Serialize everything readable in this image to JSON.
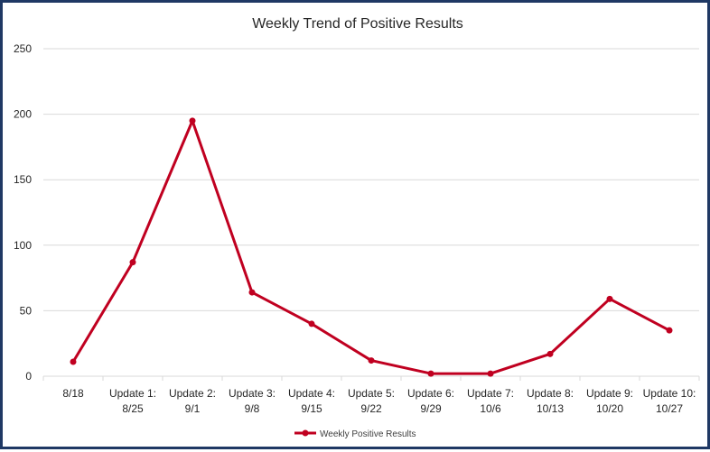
{
  "chart_data": {
    "type": "line",
    "title": "Weekly Trend of Positive Results",
    "xlabel": "",
    "ylabel": "",
    "categories": [
      [
        "8/18"
      ],
      [
        "Update 1:",
        "8/25"
      ],
      [
        "Update 2:",
        "9/1"
      ],
      [
        "Update 3:",
        "9/8"
      ],
      [
        "Update 4:",
        "9/15"
      ],
      [
        "Update 5:",
        "9/22"
      ],
      [
        "Update 6:",
        "9/29"
      ],
      [
        "Update 7:",
        "10/6"
      ],
      [
        "Update 8:",
        "10/13"
      ],
      [
        "Update 9:",
        "10/20"
      ],
      [
        "Update 10:",
        "10/27"
      ]
    ],
    "series": [
      {
        "name": "Weekly Positive Results",
        "color": "#c00020",
        "values": [
          11,
          87,
          195,
          64,
          40,
          12,
          2,
          2,
          17,
          59,
          35
        ]
      }
    ],
    "ylim": [
      0,
      250
    ],
    "yticks": [
      0,
      50,
      100,
      150,
      200,
      250
    ],
    "grid": true,
    "legend_position": "bottom"
  }
}
